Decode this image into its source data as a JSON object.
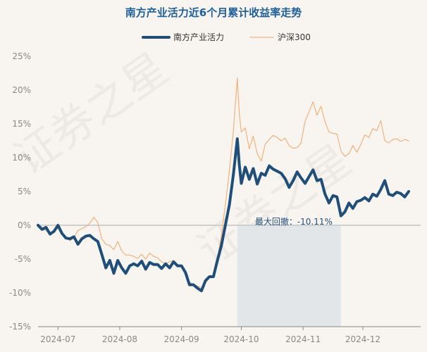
{
  "chart_data": {
    "type": "line",
    "title": "南方产业活力近6个月累计收益率走势",
    "watermark": "证券之星",
    "yunit": "%",
    "ylim": [
      -15,
      25
    ],
    "yticks": [
      -15,
      -10,
      -5,
      0,
      5,
      10,
      15,
      20,
      25
    ],
    "ytick_labels": [
      "-15%",
      "-10%",
      "-5%",
      "0%",
      "5%",
      "10%",
      "15%",
      "20%",
      "25%"
    ],
    "x_range": [
      "2024-06-21",
      "2024-12-30"
    ],
    "xtick_dates": [
      "2024-07-01",
      "2024-08-01",
      "2024-09-01",
      "2024-10-01",
      "2024-11-01",
      "2024-12-01"
    ],
    "xtick_labels": [
      "2024-07",
      "2024-08",
      "2024-09",
      "2024-10",
      "2024-11",
      "2024-12"
    ],
    "grid": false,
    "legend_position": "top-center",
    "series": [
      {
        "name": "南方产业活力",
        "color": "#1f4e79",
        "data": [
          [
            "2024-06-21",
            0.0
          ],
          [
            "2024-06-23",
            -0.6
          ],
          [
            "2024-06-25",
            -0.3
          ],
          [
            "2024-06-27",
            -1.3
          ],
          [
            "2024-06-29",
            -0.9
          ],
          [
            "2024-07-01",
            0.0
          ],
          [
            "2024-07-03",
            -1.2
          ],
          [
            "2024-07-05",
            -1.9
          ],
          [
            "2024-07-07",
            -2.0
          ],
          [
            "2024-07-09",
            -1.7
          ],
          [
            "2024-07-11",
            -2.8
          ],
          [
            "2024-07-13",
            -2.0
          ],
          [
            "2024-07-15",
            -1.6
          ],
          [
            "2024-07-17",
            -1.5
          ],
          [
            "2024-07-19",
            -2.0
          ],
          [
            "2024-07-21",
            -2.4
          ],
          [
            "2024-07-23",
            -4.3
          ],
          [
            "2024-07-25",
            -6.3
          ],
          [
            "2024-07-27",
            -5.2
          ],
          [
            "2024-07-29",
            -7.1
          ],
          [
            "2024-07-31",
            -5.2
          ],
          [
            "2024-08-02",
            -6.3
          ],
          [
            "2024-08-04",
            -7.1
          ],
          [
            "2024-08-06",
            -6.0
          ],
          [
            "2024-08-08",
            -5.7
          ],
          [
            "2024-08-10",
            -6.0
          ],
          [
            "2024-08-12",
            -5.3
          ],
          [
            "2024-08-14",
            -6.5
          ],
          [
            "2024-08-16",
            -5.5
          ],
          [
            "2024-08-18",
            -5.8
          ],
          [
            "2024-08-20",
            -5.8
          ],
          [
            "2024-08-22",
            -6.4
          ],
          [
            "2024-08-24",
            -5.7
          ],
          [
            "2024-08-26",
            -6.3
          ],
          [
            "2024-08-28",
            -5.4
          ],
          [
            "2024-08-30",
            -6.0
          ],
          [
            "2024-09-01",
            -6.0
          ],
          [
            "2024-09-03",
            -7.0
          ],
          [
            "2024-09-05",
            -8.8
          ],
          [
            "2024-09-07",
            -8.8
          ],
          [
            "2024-09-09",
            -9.3
          ],
          [
            "2024-09-11",
            -9.7
          ],
          [
            "2024-09-13",
            -8.2
          ],
          [
            "2024-09-15",
            -7.6
          ],
          [
            "2024-09-17",
            -7.6
          ],
          [
            "2024-09-19",
            -5.2
          ],
          [
            "2024-09-21",
            -3.0
          ],
          [
            "2024-09-23",
            0.0
          ],
          [
            "2024-09-25",
            3.0
          ],
          [
            "2024-09-27",
            7.5
          ],
          [
            "2024-09-29",
            12.8
          ],
          [
            "2024-09-30",
            9.0
          ],
          [
            "2024-10-01",
            6.2
          ],
          [
            "2024-10-03",
            8.6
          ],
          [
            "2024-10-05",
            6.8
          ],
          [
            "2024-10-07",
            8.4
          ],
          [
            "2024-10-09",
            6.1
          ],
          [
            "2024-10-11",
            7.7
          ],
          [
            "2024-10-13",
            7.4
          ],
          [
            "2024-10-15",
            8.8
          ],
          [
            "2024-10-17",
            8.3
          ],
          [
            "2024-10-19",
            8.0
          ],
          [
            "2024-10-21",
            7.7
          ],
          [
            "2024-10-23",
            6.9
          ],
          [
            "2024-10-25",
            5.6
          ],
          [
            "2024-10-27",
            6.6
          ],
          [
            "2024-10-29",
            7.9
          ],
          [
            "2024-10-31",
            7.0
          ],
          [
            "2024-11-02",
            6.2
          ],
          [
            "2024-11-04",
            7.2
          ],
          [
            "2024-11-06",
            8.2
          ],
          [
            "2024-11-08",
            6.6
          ],
          [
            "2024-11-10",
            6.8
          ],
          [
            "2024-11-12",
            4.6
          ],
          [
            "2024-11-14",
            3.3
          ],
          [
            "2024-11-16",
            4.4
          ],
          [
            "2024-11-18",
            4.2
          ],
          [
            "2024-11-20",
            1.4
          ],
          [
            "2024-11-22",
            2.0
          ],
          [
            "2024-11-24",
            3.3
          ],
          [
            "2024-11-26",
            2.5
          ],
          [
            "2024-11-28",
            3.5
          ],
          [
            "2024-11-30",
            3.7
          ],
          [
            "2024-12-02",
            4.1
          ],
          [
            "2024-12-04",
            3.6
          ],
          [
            "2024-12-06",
            4.6
          ],
          [
            "2024-12-08",
            4.3
          ],
          [
            "2024-12-10",
            5.3
          ],
          [
            "2024-12-12",
            6.6
          ],
          [
            "2024-12-14",
            4.6
          ],
          [
            "2024-12-16",
            4.4
          ],
          [
            "2024-12-18",
            4.9
          ],
          [
            "2024-12-20",
            4.7
          ],
          [
            "2024-12-22",
            4.2
          ],
          [
            "2024-12-24",
            5.0
          ]
        ]
      },
      {
        "name": "沪深300",
        "color": "#f0b27a",
        "data": [
          [
            "2024-06-21",
            0.0
          ],
          [
            "2024-06-23",
            -0.5
          ],
          [
            "2024-06-25",
            -0.8
          ],
          [
            "2024-06-27",
            -1.3
          ],
          [
            "2024-06-29",
            -0.9
          ],
          [
            "2024-07-01",
            -0.4
          ],
          [
            "2024-07-03",
            -1.3
          ],
          [
            "2024-07-05",
            -1.7
          ],
          [
            "2024-07-07",
            -2.3
          ],
          [
            "2024-07-09",
            -1.8
          ],
          [
            "2024-07-11",
            -0.8
          ],
          [
            "2024-07-13",
            -0.5
          ],
          [
            "2024-07-15",
            -0.2
          ],
          [
            "2024-07-17",
            0.3
          ],
          [
            "2024-07-19",
            1.2
          ],
          [
            "2024-07-21",
            0.4
          ],
          [
            "2024-07-23",
            -2.0
          ],
          [
            "2024-07-25",
            -2.8
          ],
          [
            "2024-07-27",
            -3.0
          ],
          [
            "2024-07-29",
            -3.6
          ],
          [
            "2024-07-31",
            -2.4
          ],
          [
            "2024-08-02",
            -3.8
          ],
          [
            "2024-08-04",
            -4.4
          ],
          [
            "2024-08-06",
            -4.4
          ],
          [
            "2024-08-08",
            -4.6
          ],
          [
            "2024-08-10",
            -4.9
          ],
          [
            "2024-08-12",
            -4.3
          ],
          [
            "2024-08-14",
            -5.0
          ],
          [
            "2024-08-16",
            -4.1
          ],
          [
            "2024-08-18",
            -4.6
          ],
          [
            "2024-08-20",
            -4.8
          ],
          [
            "2024-08-22",
            -5.4
          ],
          [
            "2024-08-24",
            -5.7
          ],
          [
            "2024-08-26",
            -5.4
          ],
          [
            "2024-08-28",
            -5.2
          ],
          [
            "2024-08-30",
            -5.8
          ],
          [
            "2024-09-01",
            -5.9
          ],
          [
            "2024-09-03",
            -6.8
          ],
          [
            "2024-09-05",
            -8.4
          ],
          [
            "2024-09-07",
            -8.8
          ],
          [
            "2024-09-09",
            -9.0
          ],
          [
            "2024-09-11",
            -9.2
          ],
          [
            "2024-09-13",
            -8.5
          ],
          [
            "2024-09-15",
            -7.8
          ],
          [
            "2024-09-17",
            -7.6
          ],
          [
            "2024-09-19",
            -5.0
          ],
          [
            "2024-09-21",
            -1.5
          ],
          [
            "2024-09-23",
            3.0
          ],
          [
            "2024-09-25",
            8.0
          ],
          [
            "2024-09-27",
            14.0
          ],
          [
            "2024-09-29",
            21.8
          ],
          [
            "2024-09-30",
            16.5
          ],
          [
            "2024-10-01",
            13.8
          ],
          [
            "2024-10-03",
            14.4
          ],
          [
            "2024-10-05",
            11.3
          ],
          [
            "2024-10-07",
            13.2
          ],
          [
            "2024-10-09",
            10.6
          ],
          [
            "2024-10-11",
            9.5
          ],
          [
            "2024-10-13",
            12.0
          ],
          [
            "2024-10-15",
            12.7
          ],
          [
            "2024-10-17",
            13.3
          ],
          [
            "2024-10-19",
            13.0
          ],
          [
            "2024-10-21",
            12.5
          ],
          [
            "2024-10-23",
            12.9
          ],
          [
            "2024-10-25",
            11.8
          ],
          [
            "2024-10-27",
            11.4
          ],
          [
            "2024-10-29",
            11.5
          ],
          [
            "2024-10-31",
            12.2
          ],
          [
            "2024-11-02",
            15.4
          ],
          [
            "2024-11-04",
            16.8
          ],
          [
            "2024-11-06",
            18.3
          ],
          [
            "2024-11-08",
            16.3
          ],
          [
            "2024-11-10",
            17.6
          ],
          [
            "2024-11-12",
            15.3
          ],
          [
            "2024-11-14",
            13.8
          ],
          [
            "2024-11-16",
            13.6
          ],
          [
            "2024-11-18",
            13.5
          ],
          [
            "2024-11-20",
            11.0
          ],
          [
            "2024-11-22",
            10.2
          ],
          [
            "2024-11-24",
            10.6
          ],
          [
            "2024-11-26",
            11.8
          ],
          [
            "2024-11-28",
            10.8
          ],
          [
            "2024-11-30",
            12.0
          ],
          [
            "2024-12-02",
            13.4
          ],
          [
            "2024-12-04",
            13.0
          ],
          [
            "2024-12-06",
            14.3
          ],
          [
            "2024-12-08",
            14.0
          ],
          [
            "2024-12-10",
            15.5
          ],
          [
            "2024-12-12",
            12.5
          ],
          [
            "2024-12-14",
            12.2
          ],
          [
            "2024-12-16",
            12.7
          ],
          [
            "2024-12-18",
            12.8
          ],
          [
            "2024-12-20",
            12.4
          ],
          [
            "2024-12-22",
            12.7
          ],
          [
            "2024-12-24",
            12.5
          ]
        ]
      }
    ],
    "annotations": [
      {
        "type": "shaded-region",
        "label": "最大回撤：-10.11%",
        "start": "2024-09-29",
        "end": "2024-11-20",
        "color": "#dfe3e8"
      }
    ]
  }
}
